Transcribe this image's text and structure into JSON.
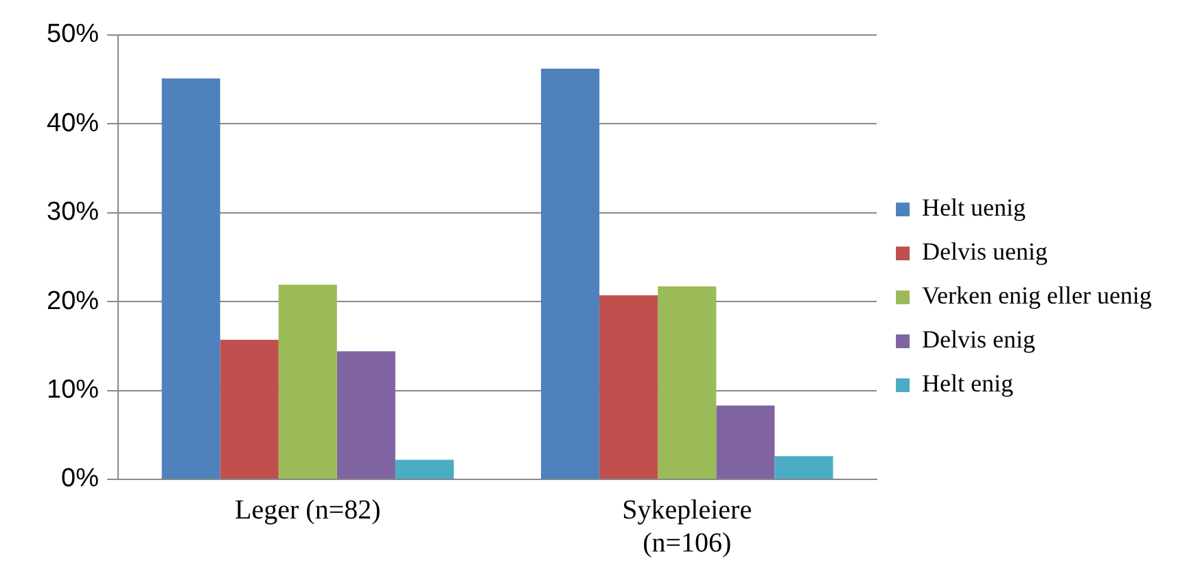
{
  "chart_data": {
    "type": "bar",
    "categories": [
      "Leger (n=82)",
      "Sykepleiere (n=106)"
    ],
    "series": [
      {
        "name": "Helt uenig",
        "color": "#4f81bd",
        "values": [
          45.1,
          46.2
        ]
      },
      {
        "name": "Delvis uenig",
        "color": "#c0504d",
        "values": [
          15.7,
          20.7
        ]
      },
      {
        "name": "Verken enig eller uenig",
        "color": "#9bbb59",
        "values": [
          21.9,
          21.7
        ]
      },
      {
        "name": "Delvis enig",
        "color": "#8064a2",
        "values": [
          14.4,
          8.3
        ]
      },
      {
        "name": "Helt enig",
        "color": "#4bacc6",
        "values": [
          2.2,
          2.6
        ]
      }
    ],
    "ylim": [
      0,
      50
    ],
    "yticks": [
      {
        "value": 0,
        "label": "0%"
      },
      {
        "value": 10,
        "label": "10%"
      },
      {
        "value": 20,
        "label": "20%"
      },
      {
        "value": 30,
        "label": "30%"
      },
      {
        "value": 40,
        "label": "40%"
      },
      {
        "value": 50,
        "label": "50%"
      }
    ],
    "grid": "y",
    "legend": "right"
  }
}
